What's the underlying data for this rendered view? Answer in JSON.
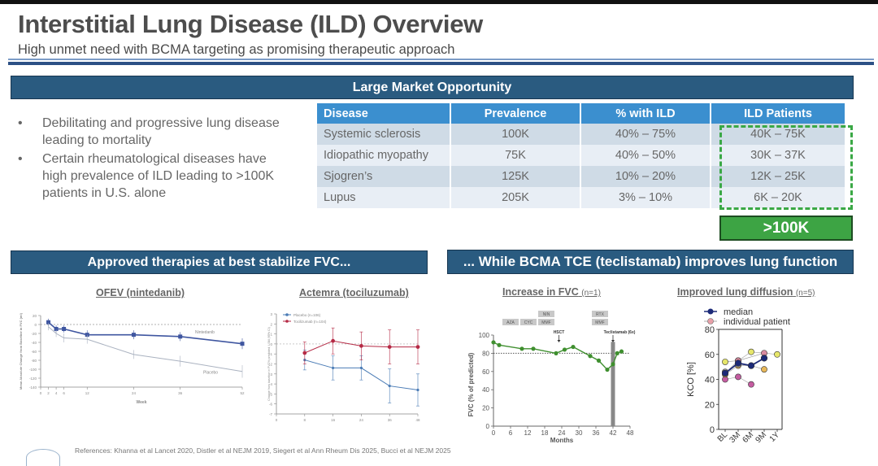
{
  "header": {
    "title": "Interstitial Lung Disease (ILD) Overview",
    "subtitle": "High unmet need with BCMA targeting as promising therapeutic approach"
  },
  "market": {
    "banner": "Large Market Opportunity",
    "bullets": [
      "Debilitating and progressive lung disease leading to mortality",
      "Certain rheumatological diseases have high prevalence of ILD leading to >100K patients in U.S. alone"
    ],
    "bullet_glyph": "•",
    "table": {
      "headers": [
        "Disease",
        "Prevalence",
        "% with ILD",
        "ILD Patients"
      ],
      "rows": [
        [
          "Systemic sclerosis",
          "100K",
          "40% – 75%",
          "40K – 75K"
        ],
        [
          "Idiopathic myopathy",
          "75K",
          "40% – 50%",
          "30K – 37K"
        ],
        [
          "Sjogren’s",
          "125K",
          "10% – 20%",
          "12K – 25K"
        ],
        [
          "Lupus",
          "205K",
          "3% – 10%",
          "6K – 20K"
        ]
      ]
    },
    "total": ">100K"
  },
  "approved": {
    "banner": "Approved therapies at best stabilize FVC..."
  },
  "bcma": {
    "banner": "... While BCMA TCE (teclistamab) improves lung function"
  },
  "colors": {
    "banner": "#2a5b80",
    "table_header": "#3b8fcf",
    "accent_green": "#3da444",
    "nintedanib": "#3f56a0",
    "placebo_ofev": "#aab2c0",
    "tocilizumab": "#b52a45",
    "placebo_actemra": "#4a7bb5",
    "fvc_line": "#3f8f2f",
    "median": "#1c2a78"
  },
  "references": "References: Khanna et al Lancet 2020, Distler et al NEJM 2019, Siegert et al Ann Rheum Dis 2025, Bucci et al NEJM 2025",
  "chart_data": [
    {
      "type": "line",
      "title": "OFEV (nintedanib)",
      "xlabel": "Week",
      "ylabel": "Mean Absolute Change from Baseline in FVC (ml)",
      "x": [
        0,
        2,
        4,
        6,
        12,
        24,
        36,
        52
      ],
      "xticks": [
        0,
        2,
        4,
        6,
        12,
        24,
        36,
        52
      ],
      "yticks": [
        20,
        0,
        -20,
        -40,
        -60,
        -80,
        -100,
        -120,
        -140
      ],
      "ylim": [
        -140,
        20
      ],
      "xlim": [
        0,
        52
      ],
      "reference_line": 0,
      "series": [
        {
          "name": "Nintedanib",
          "x": [
            2,
            4,
            6,
            12,
            24,
            36,
            52
          ],
          "values": [
            5,
            -10,
            -10,
            -23,
            -23,
            -27,
            -43
          ],
          "err": [
            8,
            8,
            8,
            10,
            10,
            10,
            12
          ]
        },
        {
          "name": "Placebo",
          "x": [
            2,
            4,
            6,
            12,
            24,
            36,
            52
          ],
          "values": [
            -5,
            -20,
            -30,
            -33,
            -67,
            -82,
            -105
          ],
          "err": [
            8,
            8,
            10,
            10,
            10,
            12,
            14
          ]
        }
      ]
    },
    {
      "type": "line",
      "title": "Actemra (tociluzumab)",
      "xlabel": "",
      "ylabel": "Change from baseline in FVC% predicted, LSM (95% CI)",
      "xticks": [
        0,
        8,
        16,
        24,
        36,
        48
      ],
      "yticks": [
        3,
        2,
        1,
        0,
        -1,
        -2,
        -3,
        -4,
        -5,
        -6,
        -7
      ],
      "ylim": [
        -7,
        3
      ],
      "reference_line": 0,
      "legend": "top-left",
      "series": [
        {
          "name": "Placebo (n=106)",
          "x_index": [
            1,
            2,
            3,
            4,
            5
          ],
          "values": [
            -1.6,
            -2.4,
            -2.4,
            -4.2,
            -4.6
          ],
          "err": [
            1.0,
            1.2,
            1.2,
            1.7,
            1.6
          ]
        },
        {
          "name": "Tocilizumab (n=104)",
          "x_index": [
            1,
            2,
            3,
            4,
            5
          ],
          "values": [
            -0.9,
            0.3,
            -0.2,
            -0.3,
            -0.3
          ],
          "err": [
            1.1,
            1.3,
            1.4,
            1.7,
            1.7
          ]
        }
      ]
    },
    {
      "type": "line",
      "title": "Increase in FVC",
      "title_note": "(n=1)",
      "xlabel": "Months",
      "ylabel": "FVC (% of predicted)",
      "xticks": [
        0,
        6,
        12,
        18,
        24,
        30,
        36,
        42,
        48
      ],
      "yticks": [
        0,
        20,
        40,
        60,
        80,
        100
      ],
      "xlim": [
        0,
        48
      ],
      "ylim": [
        0,
        100
      ],
      "reference_line": 80,
      "series": [
        {
          "name": "FVC",
          "x": [
            0,
            2,
            10,
            14,
            22,
            25,
            28,
            34,
            37,
            40,
            42,
            43.5,
            45
          ],
          "values": [
            92,
            89,
            85,
            85,
            80,
            84,
            87,
            77,
            72,
            62,
            68,
            80,
            82
          ]
        }
      ],
      "treatment_boxes": [
        {
          "label": "AZA",
          "row": 2
        },
        {
          "label": "CYC",
          "row": 2
        },
        {
          "label": "NIN",
          "row": 1
        },
        {
          "label": "MMF",
          "row": 2
        },
        {
          "label": "RTX",
          "row": 1
        },
        {
          "label": "MMF",
          "row": 2
        }
      ],
      "annotations": [
        {
          "label": "HSCT",
          "x": 23
        },
        {
          "label": "Teclistamab (6x)",
          "x": 42
        }
      ]
    },
    {
      "type": "line",
      "title": "Improved lung diffusion",
      "title_note": "(n=5)",
      "xlabel": "",
      "ylabel": "KCO [%]",
      "categories": [
        "BL",
        "3M",
        "6M",
        "9M",
        "1Y"
      ],
      "yticks": [
        0,
        20,
        40,
        60,
        80
      ],
      "ylim": [
        0,
        80
      ],
      "legend": [
        "median",
        "individual patient"
      ],
      "series": [
        {
          "name": "median",
          "values": [
            45,
            53,
            51,
            57,
            null
          ],
          "color": "#1c2a78"
        },
        {
          "name": "patient 1",
          "values": [
            54,
            55,
            62,
            null,
            60
          ],
          "color": "#e6e66a"
        },
        {
          "name": "patient 2",
          "values": [
            40,
            42,
            36,
            null,
            null
          ],
          "color": "#c45ca0"
        },
        {
          "name": "patient 3",
          "values": [
            44,
            51,
            51,
            48,
            null
          ],
          "color": "#e8b85a"
        },
        {
          "name": "patient 4",
          "values": [
            45,
            55,
            null,
            61,
            null
          ],
          "color": "#d98aa0"
        },
        {
          "name": "patient 5",
          "values": [
            46,
            52,
            51,
            57,
            null
          ],
          "color": "#b8b8b8"
        }
      ]
    }
  ]
}
